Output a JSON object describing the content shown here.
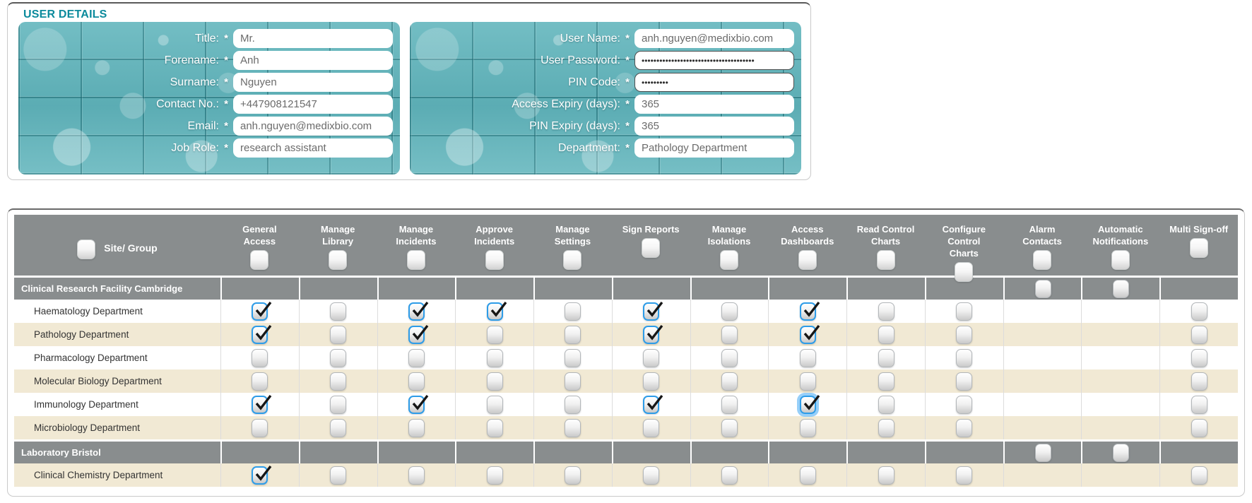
{
  "user_details": {
    "section_title": "USER DETAILS",
    "left_fields": [
      {
        "name": "title",
        "label": "Title:",
        "required": "*",
        "value": "Mr."
      },
      {
        "name": "forename",
        "label": "Forename:",
        "required": "*",
        "value": "Anh"
      },
      {
        "name": "surname",
        "label": "Surname:",
        "required": "*",
        "value": "Nguyen"
      },
      {
        "name": "contact-no",
        "label": "Contact No.:",
        "required": "*",
        "value": "+447908121547"
      },
      {
        "name": "email",
        "label": "Email:",
        "required": "*",
        "value": "anh.nguyen@medixbio.com"
      },
      {
        "name": "job-role",
        "label": "Job Role:",
        "required": "*",
        "value": "research assistant"
      }
    ],
    "right_fields": [
      {
        "name": "user-name",
        "label": "User Name:",
        "required": "*",
        "value": "anh.nguyen@medixbio.com"
      },
      {
        "name": "user-password",
        "label": "User Password:",
        "required": "*",
        "value": "••••••••••••••••••••••••••••••••••••••",
        "masked": true
      },
      {
        "name": "pin-code",
        "label": "PIN Code:",
        "required": "*",
        "value": "•••••••••",
        "masked": true
      },
      {
        "name": "access-expiry",
        "label": "Access Expiry (days):",
        "required": "*",
        "value": "365"
      },
      {
        "name": "pin-expiry",
        "label": "PIN Expiry (days):",
        "required": "*",
        "value": "365"
      },
      {
        "name": "department",
        "label": "Department:",
        "required": "*",
        "value": "Pathology Department"
      }
    ]
  },
  "permissions_table": {
    "site_group_header": "Site/ Group",
    "columns": [
      "General Access",
      "Manage Library",
      "Manage Incidents",
      "Approve Incidents",
      "Manage Settings",
      "Sign Reports",
      "Manage Isolations",
      "Access Dashboards",
      "Read Control Charts",
      "Configure Control Charts",
      "Alarm Contacts",
      "Automatic Notifications",
      "Multi Sign-off"
    ],
    "rows": [
      {
        "type": "group",
        "name": "Clinical Research Facility Cambridge",
        "cells": [
          "empty",
          "empty",
          "empty",
          "empty",
          "empty",
          "empty",
          "empty",
          "empty",
          "empty",
          "empty",
          "unchecked",
          "unchecked",
          "empty"
        ]
      },
      {
        "type": "department",
        "name": "Haematology Department",
        "shade": "white",
        "cells": [
          "checked",
          "unchecked",
          "checked",
          "checked",
          "unchecked",
          "checked",
          "unchecked",
          "checked",
          "unchecked",
          "unchecked",
          "empty",
          "empty",
          "unchecked"
        ]
      },
      {
        "type": "department",
        "name": "Pathology Department",
        "shade": "beige",
        "cells": [
          "checked",
          "unchecked",
          "checked",
          "unchecked",
          "unchecked",
          "checked",
          "unchecked",
          "checked",
          "unchecked",
          "unchecked",
          "empty",
          "empty",
          "unchecked"
        ]
      },
      {
        "type": "department",
        "name": "Pharmacology Department",
        "shade": "white",
        "cells": [
          "unchecked",
          "unchecked",
          "unchecked",
          "unchecked",
          "unchecked",
          "unchecked",
          "unchecked",
          "unchecked",
          "unchecked",
          "unchecked",
          "empty",
          "empty",
          "unchecked"
        ]
      },
      {
        "type": "department",
        "name": "Molecular Biology Department",
        "shade": "beige",
        "cells": [
          "unchecked",
          "unchecked",
          "unchecked",
          "unchecked",
          "unchecked",
          "unchecked",
          "unchecked",
          "unchecked",
          "unchecked",
          "unchecked",
          "empty",
          "empty",
          "unchecked"
        ]
      },
      {
        "type": "department",
        "name": "Immunology Department",
        "shade": "white",
        "cells": [
          "checked",
          "unchecked",
          "checked",
          "unchecked",
          "unchecked",
          "checked",
          "unchecked",
          "checked-focused",
          "unchecked",
          "unchecked",
          "empty",
          "empty",
          "unchecked"
        ]
      },
      {
        "type": "department",
        "name": "Microbiology Department",
        "shade": "beige",
        "cells": [
          "unchecked",
          "unchecked",
          "unchecked",
          "unchecked",
          "unchecked",
          "unchecked",
          "unchecked",
          "unchecked",
          "unchecked",
          "unchecked",
          "empty",
          "empty",
          "unchecked"
        ]
      },
      {
        "type": "group",
        "name": "Laboratory Bristol",
        "cells": [
          "empty",
          "empty",
          "empty",
          "empty",
          "empty",
          "empty",
          "empty",
          "empty",
          "empty",
          "empty",
          "unchecked",
          "unchecked",
          "empty"
        ]
      },
      {
        "type": "department",
        "name": "Clinical Chemistry Department",
        "shade": "beige",
        "cells": [
          "checked",
          "unchecked",
          "unchecked",
          "unchecked",
          "unchecked",
          "unchecked",
          "unchecked",
          "unchecked",
          "unchecked",
          "unchecked",
          "empty",
          "empty",
          "unchecked"
        ]
      }
    ]
  },
  "colors": {
    "section_title": "#0b8a9c",
    "teal_panel": "#63b6bd",
    "header_gray": "#898d8e",
    "row_beige": "#f1e9d4",
    "checked_border": "#2d9ce8",
    "focus_glow": "#7dc3f8"
  }
}
